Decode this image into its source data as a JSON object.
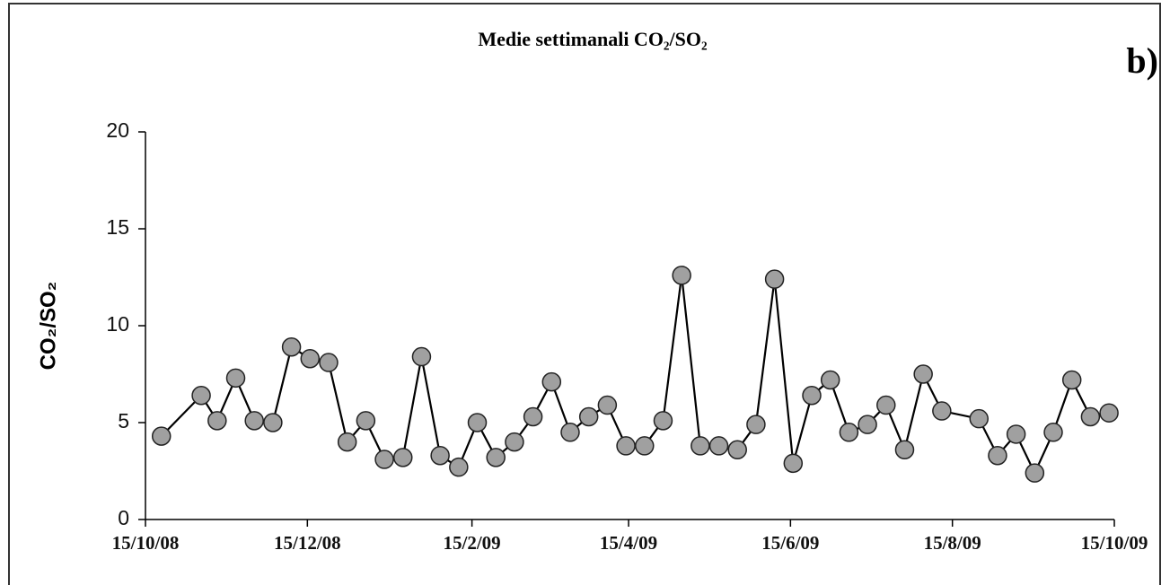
{
  "chart_data": {
    "type": "line",
    "title": "Medie settimanali CO₂/SO₂",
    "annotation": "b)",
    "y_label": "CO₂/SO₂",
    "x": [
      "2008-10-21",
      "2008-11-05",
      "2008-11-11",
      "2008-11-18",
      "2008-11-25",
      "2008-12-02",
      "2008-12-09",
      "2008-12-16",
      "2008-12-23",
      "2008-12-30",
      "2009-01-06",
      "2009-01-13",
      "2009-01-20",
      "2009-01-27",
      "2009-02-03",
      "2009-02-10",
      "2009-02-17",
      "2009-02-24",
      "2009-03-03",
      "2009-03-10",
      "2009-03-17",
      "2009-03-24",
      "2009-03-31",
      "2009-04-07",
      "2009-04-14",
      "2009-04-21",
      "2009-04-28",
      "2009-05-05",
      "2009-05-12",
      "2009-05-19",
      "2009-05-26",
      "2009-06-02",
      "2009-06-09",
      "2009-06-16",
      "2009-06-23",
      "2009-06-30",
      "2009-07-07",
      "2009-07-14",
      "2009-07-21",
      "2009-07-28",
      "2009-08-04",
      "2009-08-11",
      "2009-08-25",
      "2009-09-01",
      "2009-09-08",
      "2009-09-15",
      "2009-09-22",
      "2009-09-29",
      "2009-10-06",
      "2009-10-13"
    ],
    "series": [
      {
        "color": "#a0a0a0",
        "line_color": "#000000",
        "values": [
          4.3,
          6.4,
          5.1,
          7.3,
          5.1,
          5.0,
          8.9,
          8.3,
          8.1,
          4.0,
          5.1,
          3.1,
          3.2,
          8.4,
          3.3,
          2.7,
          5.0,
          3.2,
          4.0,
          5.3,
          7.1,
          4.5,
          5.3,
          5.9,
          3.8,
          3.8,
          5.1,
          12.6,
          3.8,
          3.8,
          3.6,
          4.9,
          12.4,
          2.9,
          6.4,
          7.2,
          4.5,
          4.9,
          5.9,
          3.6,
          7.5,
          5.6,
          5.2,
          3.3,
          4.4,
          2.4,
          4.5,
          7.2,
          5.3,
          5.5
        ]
      }
    ],
    "xlim": [
      "2008-10-15",
      "2009-10-15"
    ],
    "xticks": [
      {
        "value": "2008-10-15",
        "label": "15/10/08"
      },
      {
        "value": "2008-12-15",
        "label": "15/12/08"
      },
      {
        "value": "2009-02-15",
        "label": "15/2/09"
      },
      {
        "value": "2009-04-15",
        "label": "15/4/09"
      },
      {
        "value": "2009-06-15",
        "label": "15/6/09"
      },
      {
        "value": "2009-08-15",
        "label": "15/8/09"
      },
      {
        "value": "2009-10-15",
        "label": "15/10/09"
      }
    ],
    "ylim": [
      0,
      20
    ],
    "yticks": [
      0,
      5,
      10,
      15,
      20
    ],
    "grid": false
  }
}
